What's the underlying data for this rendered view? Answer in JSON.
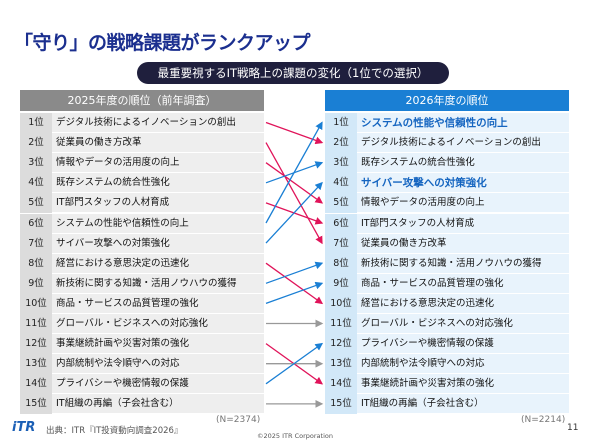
{
  "title": "「守り」の戦略課題がランクアップ",
  "subtitle": "最重要視するIT戦略上の課題の変化（1位での選択）",
  "left_column": {
    "header": "2025年度の順位（前年調査）",
    "n_label": "(N=2374)",
    "rows": [
      {
        "rank": "1位",
        "label": "デジタル技術によるイノベーションの創出"
      },
      {
        "rank": "2位",
        "label": "従業員の働き方改革"
      },
      {
        "rank": "3位",
        "label": "情報やデータの活用度の向上"
      },
      {
        "rank": "4位",
        "label": "既存システムの統合性強化"
      },
      {
        "rank": "5位",
        "label": "IT部門スタッフの人材育成"
      },
      {
        "rank": "6位",
        "label": "システムの性能や信頼性の向上"
      },
      {
        "rank": "7位",
        "label": "サイバー攻撃への対策強化"
      },
      {
        "rank": "8位",
        "label": "経営における意思決定の迅速化"
      },
      {
        "rank": "9位",
        "label": "新技術に関する知識・活用ノウハウの獲得"
      },
      {
        "rank": "10位",
        "label": "商品・サービスの品質管理の強化"
      },
      {
        "rank": "11位",
        "label": "グローバル・ビジネスへの対応強化"
      },
      {
        "rank": "12位",
        "label": "事業継続計画や災害対策の強化"
      },
      {
        "rank": "13位",
        "label": "内部統制や法令順守への対応"
      },
      {
        "rank": "14位",
        "label": "プライバシーや機密情報の保護"
      },
      {
        "rank": "15位",
        "label": "IT組織の再編（子会社含む）"
      }
    ]
  },
  "right_column": {
    "header": "2026年度の順位",
    "n_label": "(N=2214)",
    "rows": [
      {
        "rank": "1位",
        "label": "システムの性能や信頼性の向上",
        "highlight": true
      },
      {
        "rank": "2位",
        "label": "デジタル技術によるイノベーションの創出",
        "highlight": false
      },
      {
        "rank": "3位",
        "label": "既存システムの統合性強化",
        "highlight": false
      },
      {
        "rank": "4位",
        "label": "サイバー攻撃への対策強化",
        "highlight": true
      },
      {
        "rank": "5位",
        "label": "情報やデータの活用度の向上",
        "highlight": false
      },
      {
        "rank": "6位",
        "label": "IT部門スタッフの人材育成",
        "highlight": false
      },
      {
        "rank": "7位",
        "label": "従業員の働き方改革",
        "highlight": false
      },
      {
        "rank": "8位",
        "label": "新技術に関する知識・活用ノウハウの獲得",
        "highlight": false
      },
      {
        "rank": "9位",
        "label": "商品・サービスの品質管理の強化",
        "highlight": false
      },
      {
        "rank": "10位",
        "label": "経営における意思決定の迅速化",
        "highlight": false
      },
      {
        "rank": "11位",
        "label": "グローバル・ビジネスへの対応強化",
        "highlight": false
      },
      {
        "rank": "12位",
        "label": "プライバシーや機密情報の保護",
        "highlight": false
      },
      {
        "rank": "13位",
        "label": "内部統制や法令順守への対応",
        "highlight": false
      },
      {
        "rank": "14位",
        "label": "事業継続計画や災害対策の強化",
        "highlight": false
      },
      {
        "rank": "15位",
        "label": "IT組織の再編（子会社含む）",
        "highlight": false
      }
    ]
  },
  "rank_moves": [
    {
      "from": 1,
      "to": 2
    },
    {
      "from": 2,
      "to": 7
    },
    {
      "from": 3,
      "to": 5
    },
    {
      "from": 4,
      "to": 3
    },
    {
      "from": 5,
      "to": 6
    },
    {
      "from": 6,
      "to": 1
    },
    {
      "from": 7,
      "to": 4
    },
    {
      "from": 8,
      "to": 10
    },
    {
      "from": 9,
      "to": 8
    },
    {
      "from": 10,
      "to": 9
    },
    {
      "from": 11,
      "to": 11
    },
    {
      "from": 12,
      "to": 14
    },
    {
      "from": 13,
      "to": 13
    },
    {
      "from": 14,
      "to": 12
    },
    {
      "from": 15,
      "to": 15
    }
  ],
  "colors": {
    "down": "#e0145a",
    "up": "#1a7fd4",
    "same": "#999999"
  },
  "footer": {
    "logo": "iTR",
    "source": "出典：ITR『IT投資動向調査2026』",
    "copyright": "©2025 ITR Corporation",
    "page": "11"
  }
}
